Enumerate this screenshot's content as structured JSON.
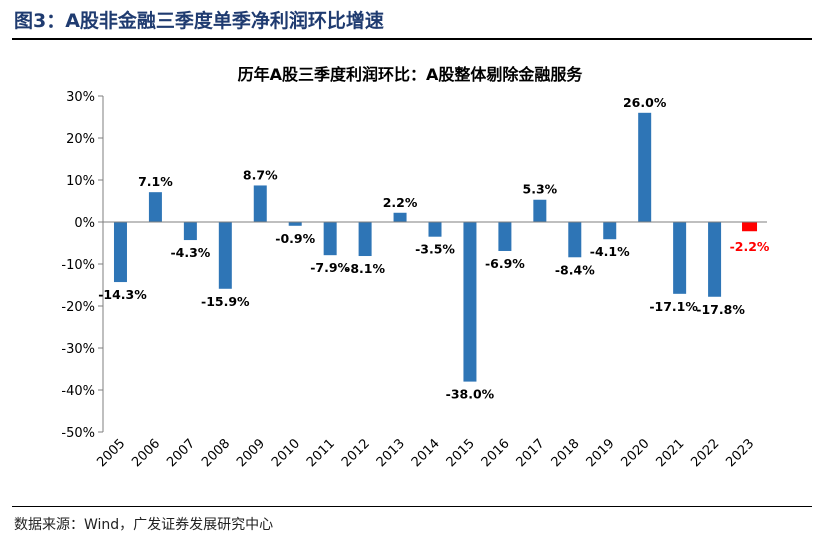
{
  "figure": {
    "label": "图3：A股非金融三季度单季净利润环比增速",
    "source": "数据来源：Wind，广发证券发展研究中心"
  },
  "chart_data": {
    "type": "bar",
    "title": "历年A股三季度利润环比：A股整体剔除金融服务",
    "xlabel": "",
    "ylabel": "",
    "categories": [
      "2005",
      "2006",
      "2007",
      "2008",
      "2009",
      "2010",
      "2011",
      "2012",
      "2013",
      "2014",
      "2015",
      "2016",
      "2017",
      "2018",
      "2019",
      "2020",
      "2021",
      "2022",
      "2023"
    ],
    "values": [
      -14.3,
      7.1,
      -4.3,
      -15.9,
      8.7,
      -0.9,
      -7.9,
      -8.1,
      2.2,
      -3.5,
      -38.0,
      -6.9,
      5.3,
      -8.4,
      -4.1,
      26.0,
      -17.1,
      -17.8,
      -2.2
    ],
    "value_labels": [
      "-14.3%",
      "7.1%",
      "-4.3%",
      "-15.9%",
      "8.7%",
      "-0.9%",
      "-7.9%",
      "-8.1%",
      "2.2%",
      "-3.5%",
      "-38.0%",
      "-6.9%",
      "5.3%",
      "-8.4%",
      "-4.1%",
      "26.0%",
      "-17.1%",
      "-17.8%",
      "-2.2%"
    ],
    "ylim": [
      -50,
      30
    ],
    "yticks": [
      "30%",
      "20%",
      "10%",
      "0%",
      "-10%",
      "-20%",
      "-30%",
      "-40%",
      "-50%"
    ],
    "ytick_values": [
      30,
      20,
      10,
      0,
      -10,
      -20,
      -30,
      -40,
      -50
    ],
    "grid": false,
    "legend": "none",
    "colors": {
      "bar": "#2e75b6",
      "highlight": "#ff0000",
      "highlight_label": "#ff0000",
      "text": "#000000"
    },
    "highlight_index": 18
  }
}
